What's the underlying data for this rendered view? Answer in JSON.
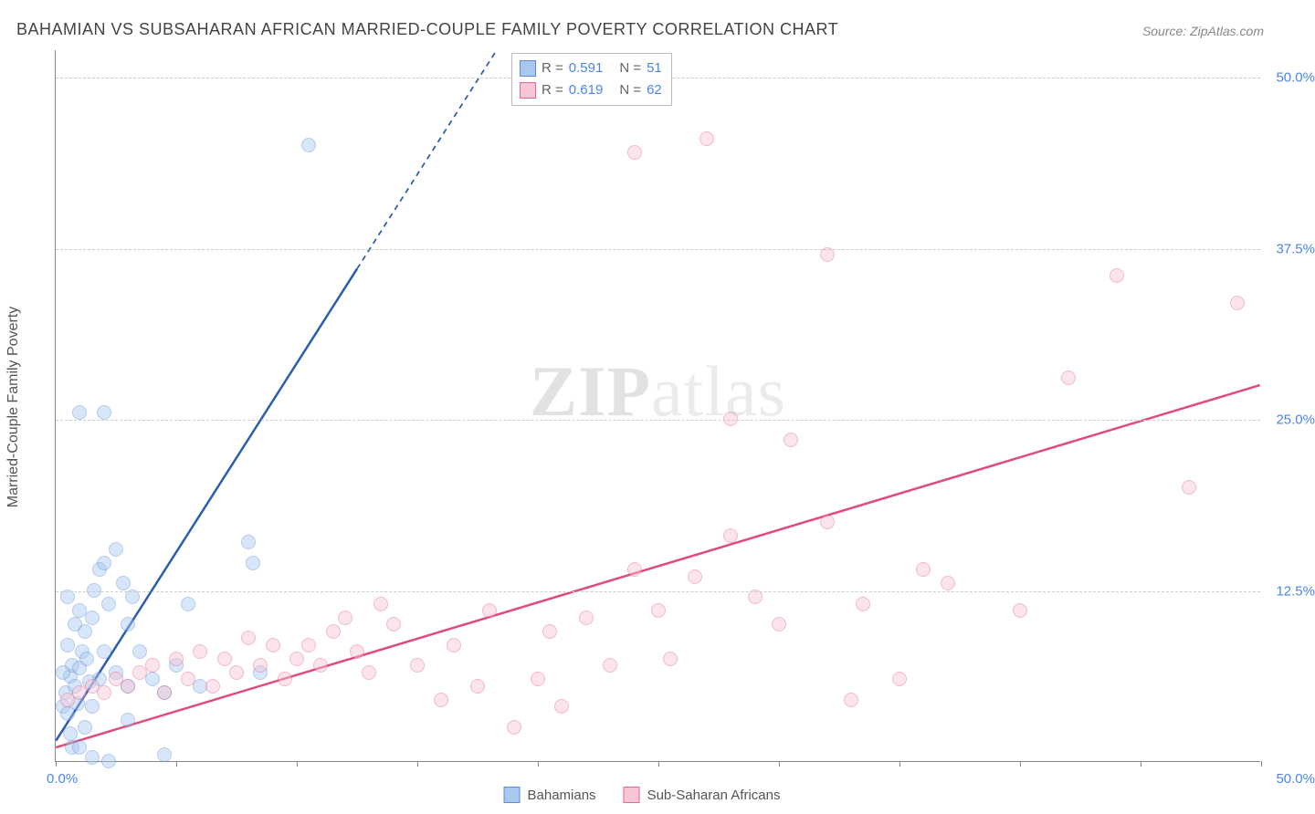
{
  "title": "BAHAMIAN VS SUBSAHARAN AFRICAN MARRIED-COUPLE FAMILY POVERTY CORRELATION CHART",
  "source": "Source: ZipAtlas.com",
  "watermark_bold": "ZIP",
  "watermark_light": "atlas",
  "chart": {
    "type": "scatter",
    "background_color": "#ffffff",
    "grid_color": "#cccccc",
    "axis_color": "#888888",
    "label_color": "#555555",
    "tick_label_color": "#4a86e8",
    "y_axis_label": "Married-Couple Family Poverty",
    "x_axis_label": "",
    "xlim": [
      0,
      50
    ],
    "ylim": [
      0,
      52
    ],
    "x_ticks": [
      0,
      5,
      10,
      15,
      20,
      25,
      30,
      35,
      40,
      45,
      50
    ],
    "y_ticks": [
      12.5,
      25.0,
      37.5,
      50.0
    ],
    "y_tick_labels": [
      "12.5%",
      "25.0%",
      "37.5%",
      "50.0%"
    ],
    "x_origin_label": "0.0%",
    "x_max_label": "50.0%",
    "marker_radius": 8,
    "marker_opacity": 0.45,
    "label_fontsize": 16,
    "tick_fontsize": 15,
    "title_fontsize": 18
  },
  "series": [
    {
      "name": "Bahamians",
      "fill_color": "#a8c8f0",
      "stroke_color": "#5b8dd6",
      "trend_color": "#2a5db0",
      "trend_width": 2.5,
      "R": "0.591",
      "N": "51",
      "trend_line": {
        "x1": 0,
        "y1": 1.5,
        "x2": 12.5,
        "y2": 36
      },
      "trend_dashed_extension": {
        "x1": 12.5,
        "y1": 36,
        "x2": 18.3,
        "y2": 52
      },
      "points": [
        [
          0.3,
          4.0
        ],
        [
          0.4,
          5.0
        ],
        [
          0.5,
          3.5
        ],
        [
          0.6,
          6.2
        ],
        [
          0.7,
          7.0
        ],
        [
          0.8,
          5.5
        ],
        [
          0.5,
          8.5
        ],
        [
          0.9,
          4.2
        ],
        [
          1.0,
          6.8
        ],
        [
          1.1,
          8.0
        ],
        [
          1.2,
          9.5
        ],
        [
          1.0,
          11.0
        ],
        [
          1.3,
          7.5
        ],
        [
          1.5,
          10.5
        ],
        [
          1.6,
          12.5
        ],
        [
          1.8,
          14.0
        ],
        [
          1.4,
          5.8
        ],
        [
          0.8,
          10.0
        ],
        [
          2.0,
          8.0
        ],
        [
          2.2,
          11.5
        ],
        [
          2.0,
          14.5
        ],
        [
          2.5,
          6.5
        ],
        [
          2.5,
          15.5
        ],
        [
          2.8,
          13.0
        ],
        [
          1.0,
          25.5
        ],
        [
          2.0,
          25.5
        ],
        [
          0.6,
          2.0
        ],
        [
          0.7,
          1.0
        ],
        [
          1.2,
          2.5
        ],
        [
          1.5,
          4.0
        ],
        [
          1.8,
          6.0
        ],
        [
          3.0,
          5.5
        ],
        [
          4.0,
          6.0
        ],
        [
          4.5,
          5.0
        ],
        [
          5.0,
          7.0
        ],
        [
          3.5,
          8.0
        ],
        [
          3.0,
          10.0
        ],
        [
          3.2,
          12.0
        ],
        [
          5.5,
          11.5
        ],
        [
          8.0,
          16.0
        ],
        [
          8.2,
          14.5
        ],
        [
          8.5,
          6.5
        ],
        [
          6.0,
          5.5
        ],
        [
          1.0,
          1.0
        ],
        [
          1.5,
          0.3
        ],
        [
          2.2,
          0.0
        ],
        [
          4.5,
          0.5
        ],
        [
          3.0,
          3.0
        ],
        [
          0.3,
          6.5
        ],
        [
          0.5,
          12.0
        ],
        [
          10.5,
          45.0
        ]
      ]
    },
    {
      "name": "Sub-Saharan Africans",
      "fill_color": "#f7c5d4",
      "stroke_color": "#e16a8f",
      "trend_color": "#e14b7c",
      "trend_width": 2.5,
      "R": "0.619",
      "N": "62",
      "trend_line": {
        "x1": 0,
        "y1": 1.0,
        "x2": 50,
        "y2": 27.5
      },
      "points": [
        [
          0.5,
          4.5
        ],
        [
          1.0,
          5.0
        ],
        [
          1.5,
          5.5
        ],
        [
          2.0,
          5.0
        ],
        [
          2.5,
          6.0
        ],
        [
          3.0,
          5.5
        ],
        [
          3.5,
          6.5
        ],
        [
          4.0,
          7.0
        ],
        [
          4.5,
          5.0
        ],
        [
          5.0,
          7.5
        ],
        [
          5.5,
          6.0
        ],
        [
          6.0,
          8.0
        ],
        [
          6.5,
          5.5
        ],
        [
          7.0,
          7.5
        ],
        [
          7.5,
          6.5
        ],
        [
          8.0,
          9.0
        ],
        [
          8.5,
          7.0
        ],
        [
          9.0,
          8.5
        ],
        [
          9.5,
          6.0
        ],
        [
          10.0,
          7.5
        ],
        [
          10.5,
          8.5
        ],
        [
          11.0,
          7.0
        ],
        [
          11.5,
          9.5
        ],
        [
          12.0,
          10.5
        ],
        [
          12.5,
          8.0
        ],
        [
          13.0,
          6.5
        ],
        [
          13.5,
          11.5
        ],
        [
          14.0,
          10.0
        ],
        [
          15.0,
          7.0
        ],
        [
          16.0,
          4.5
        ],
        [
          16.5,
          8.5
        ],
        [
          17.5,
          5.5
        ],
        [
          18.0,
          11.0
        ],
        [
          19.0,
          2.5
        ],
        [
          20.0,
          6.0
        ],
        [
          20.5,
          9.5
        ],
        [
          21.0,
          4.0
        ],
        [
          22.0,
          10.5
        ],
        [
          23.0,
          7.0
        ],
        [
          24.0,
          14.0
        ],
        [
          25.0,
          11.0
        ],
        [
          25.5,
          7.5
        ],
        [
          26.5,
          13.5
        ],
        [
          28.0,
          16.5
        ],
        [
          29.0,
          12.0
        ],
        [
          30.0,
          10.0
        ],
        [
          32.0,
          17.5
        ],
        [
          33.0,
          4.5
        ],
        [
          33.5,
          11.5
        ],
        [
          35.0,
          6.0
        ],
        [
          36.0,
          14.0
        ],
        [
          37.0,
          13.0
        ],
        [
          40.0,
          11.0
        ],
        [
          42.0,
          28.0
        ],
        [
          44.0,
          35.5
        ],
        [
          47.0,
          20.0
        ],
        [
          49.0,
          33.5
        ],
        [
          24.0,
          44.5
        ],
        [
          27.0,
          45.5
        ],
        [
          32.0,
          37.0
        ],
        [
          30.5,
          23.5
        ],
        [
          28.0,
          25.0
        ]
      ]
    }
  ],
  "legend_box": {
    "R_label": "R =",
    "N_label": "N ="
  },
  "bottom_legend": {
    "items": [
      "Bahamians",
      "Sub-Saharan Africans"
    ]
  }
}
